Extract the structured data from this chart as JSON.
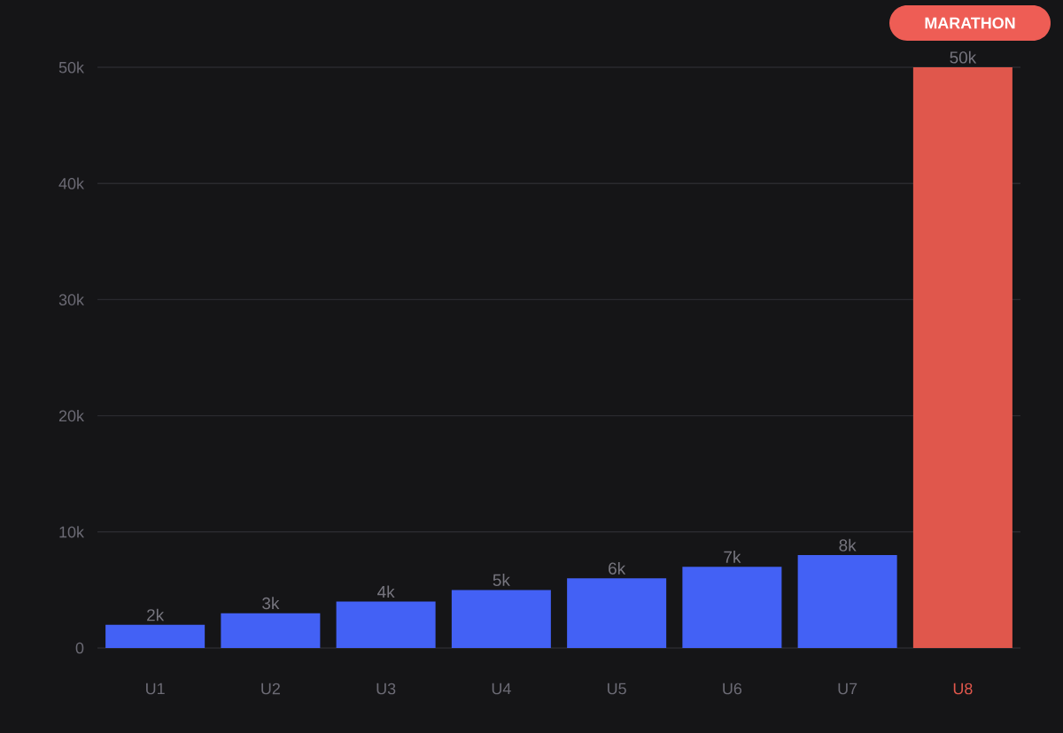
{
  "chart_data": {
    "type": "bar",
    "categories": [
      "U1",
      "U2",
      "U3",
      "U4",
      "U5",
      "U6",
      "U7",
      "U8"
    ],
    "values": [
      2000,
      3000,
      4000,
      5000,
      6000,
      7000,
      8000,
      50000
    ],
    "value_labels": [
      "2k",
      "3k",
      "4k",
      "5k",
      "6k",
      "7k",
      "8k",
      "50k"
    ],
    "colors": [
      "#4361f5",
      "#4361f5",
      "#4361f5",
      "#4361f5",
      "#4361f5",
      "#4361f5",
      "#4361f5",
      "#e0574c"
    ],
    "ylim": [
      0,
      50000
    ],
    "yticks": [
      0,
      {
        "value": 10000,
        "label": "10k"
      },
      {
        "value": 20000,
        "label": "20k"
      },
      {
        "value": 30000,
        "label": "30k"
      },
      {
        "value": 40000,
        "label": "40k"
      },
      {
        "value": 50000,
        "label": "50k"
      }
    ],
    "grid": "y",
    "annotations": [
      "MARATHON"
    ]
  }
}
